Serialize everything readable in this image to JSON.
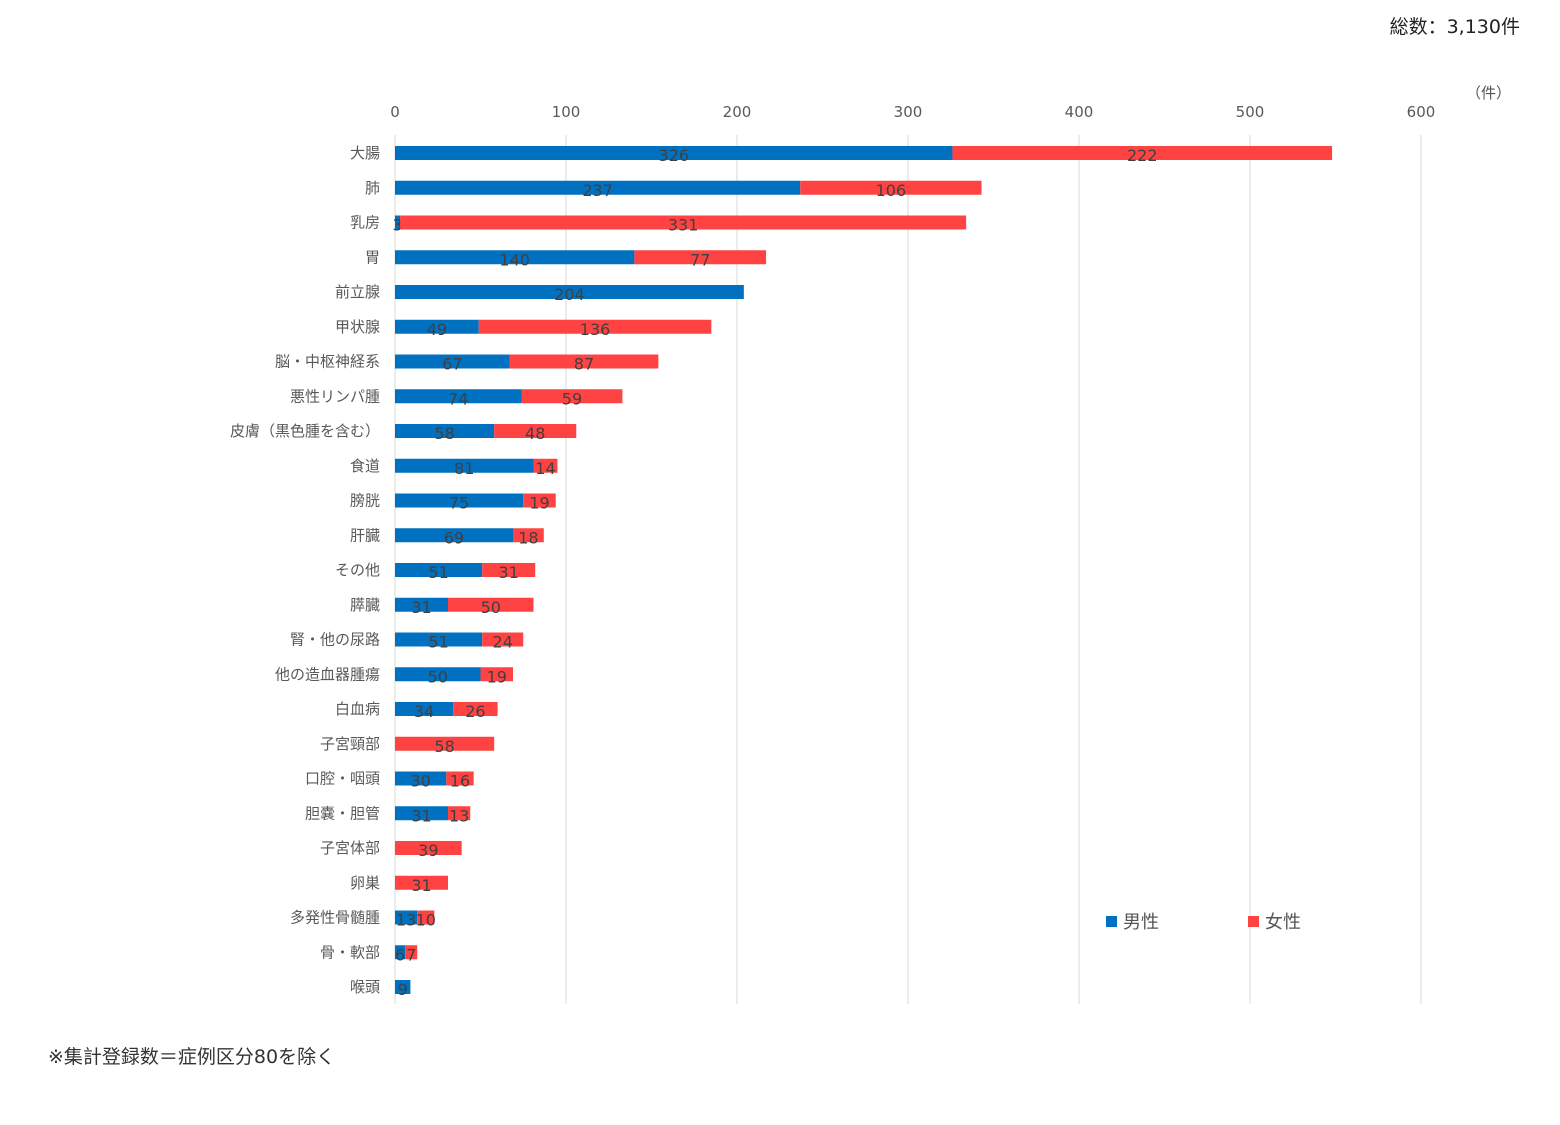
{
  "header": {
    "total": "総数：3,130件",
    "unit": "（件）"
  },
  "footnote": "※集計登録数＝症例区分80を除く",
  "chart_data": {
    "type": "bar",
    "orientation": "horizontal",
    "stacked": true,
    "xlim": [
      0,
      600
    ],
    "xticks": [
      "0",
      "100",
      "200",
      "300",
      "400",
      "500",
      "600"
    ],
    "grid": true,
    "legend_position": "bottom-right",
    "categories": [
      "大腸",
      "肺",
      "乳房",
      "胃",
      "前立腺",
      "甲状腺",
      "脳・中枢神経系",
      "悪性リンパ腫",
      "皮膚（黒色腫を含む）",
      "食道",
      "膀胱",
      "肝臓",
      "その他",
      "膵臓",
      "腎・他の尿路",
      "他の造血器腫瘍",
      "白血病",
      "子宮頸部",
      "口腔・咽頭",
      "胆嚢・胆管",
      "子宮体部",
      "卵巣",
      "多発性骨髄腫",
      "骨・軟部",
      "喉頭"
    ],
    "series": [
      {
        "name": "男性",
        "color": "#0070C0",
        "values": [
          326,
          237,
          3,
          140,
          204,
          49,
          67,
          74,
          58,
          81,
          75,
          69,
          51,
          31,
          51,
          50,
          34,
          null,
          30,
          31,
          null,
          null,
          13,
          6,
          9
        ]
      },
      {
        "name": "女性",
        "color": "#FF4343",
        "values": [
          222,
          106,
          331,
          77,
          null,
          136,
          87,
          59,
          48,
          14,
          19,
          18,
          31,
          50,
          24,
          19,
          26,
          58,
          16,
          13,
          39,
          31,
          10,
          7,
          null
        ]
      }
    ]
  }
}
